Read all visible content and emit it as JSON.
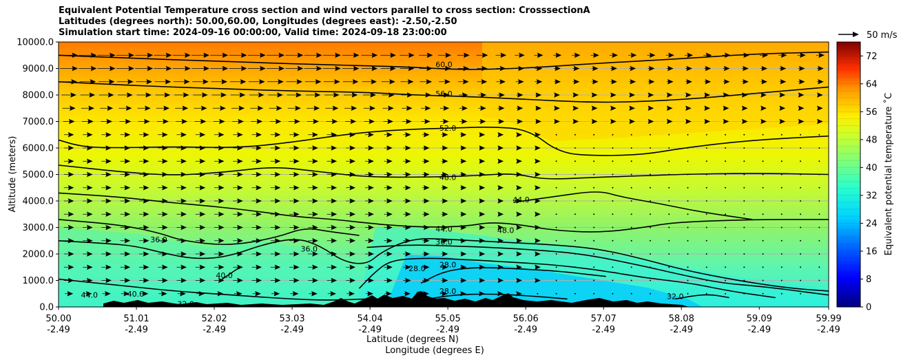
{
  "title": {
    "line1": "Equivalent Potential Temperature cross section and wind vectors parallel to cross section: CrosssectionA",
    "line2": "Latitudes (degrees north): 50.00,60.00, Longitudes (degrees east): -2.50,-2.50",
    "line3": "Simulation start time: 2024-09-16 00:00:00, Valid time: 2024-09-18 23:00:00"
  },
  "chart_data": {
    "type": "heatmap",
    "subtype": "cross-section filled contour with wind vectors",
    "xlabel_line1": "Latitude (degrees N)",
    "xlabel_line2": "Longitude (degrees E)",
    "ylabel": "Altitude (meters)",
    "ylim": [
      0,
      10000
    ],
    "xlim": [
      50.0,
      59.99
    ],
    "y_ticks": [
      0,
      1000,
      2000,
      3000,
      4000,
      5000,
      6000,
      7000,
      8000,
      9000,
      10000
    ],
    "y_tick_labels": [
      "0.0",
      "1000.0",
      "2000.0",
      "3000.0",
      "4000.0",
      "5000.0",
      "6000.0",
      "7000.0",
      "8000.0",
      "9000.0",
      "10000.0"
    ],
    "x_ticks": [
      50.0,
      51.01,
      52.02,
      53.03,
      54.04,
      55.05,
      56.06,
      57.07,
      58.08,
      59.09,
      59.99
    ],
    "x_tick_labels": [
      "50.00",
      "51.01",
      "52.02",
      "53.03",
      "54.04",
      "55.05",
      "56.06",
      "57.07",
      "58.08",
      "59.09",
      "59.99"
    ],
    "x_tick_lon_labels": [
      "-2.49",
      "-2.49",
      "-2.49",
      "-2.49",
      "-2.49",
      "-2.49",
      "-2.49",
      "-2.49",
      "-2.49",
      "-2.49",
      "-2.49"
    ],
    "grid": "horizontal",
    "colorbar": {
      "label": "Equivalent potential temperature ˚C",
      "min": 0,
      "max": 76,
      "ticks": [
        0,
        8,
        16,
        24,
        32,
        40,
        48,
        56,
        64,
        72
      ],
      "tick_labels": [
        "0",
        "8",
        "16",
        "24",
        "32",
        "40",
        "48",
        "56",
        "64",
        "72"
      ],
      "colormap": "jet"
    },
    "quiver_key_label": "50 m/s",
    "contours": [
      {
        "level": "60.0",
        "points": [
          [
            50.0,
            9500
          ],
          [
            51.0,
            9380
          ],
          [
            52.0,
            9280
          ],
          [
            53.0,
            9180
          ],
          [
            54.0,
            9100
          ],
          [
            54.6,
            9050
          ],
          [
            55.2,
            8950
          ],
          [
            56.0,
            9000
          ],
          [
            57.0,
            9200
          ],
          [
            58.0,
            9350
          ],
          [
            59.0,
            9550
          ],
          [
            59.99,
            9620
          ]
        ]
      },
      {
        "level": "56.0",
        "points": [
          [
            50.0,
            8500
          ],
          [
            51.0,
            8350
          ],
          [
            52.0,
            8250
          ],
          [
            53.0,
            8150
          ],
          [
            54.0,
            8100
          ],
          [
            54.6,
            8000
          ],
          [
            55.2,
            7950
          ],
          [
            56.0,
            7850
          ],
          [
            57.0,
            7700
          ],
          [
            58.0,
            7800
          ],
          [
            59.0,
            8050
          ],
          [
            59.99,
            8300
          ]
        ]
      },
      {
        "level": "52.0",
        "points": [
          [
            50.0,
            6300
          ],
          [
            50.3,
            6050
          ],
          [
            50.7,
            6000
          ],
          [
            51.5,
            6050
          ],
          [
            52.3,
            6000
          ],
          [
            53.0,
            6200
          ],
          [
            53.8,
            6550
          ],
          [
            54.5,
            6700
          ],
          [
            55.1,
            6750
          ],
          [
            55.6,
            6800
          ],
          [
            56.1,
            6700
          ],
          [
            56.5,
            5800
          ],
          [
            57.0,
            5700
          ],
          [
            57.6,
            5750
          ],
          [
            58.1,
            6000
          ],
          [
            59.0,
            6300
          ],
          [
            59.99,
            6450
          ]
        ]
      },
      {
        "level": "48.0",
        "points": [
          [
            50.0,
            5350
          ],
          [
            50.8,
            5100
          ],
          [
            51.5,
            4950
          ],
          [
            52.2,
            5100
          ],
          [
            52.8,
            5300
          ],
          [
            53.4,
            5100
          ],
          [
            54.0,
            4900
          ],
          [
            54.8,
            4900
          ],
          [
            55.4,
            4950
          ],
          [
            55.9,
            5050
          ],
          [
            56.3,
            4800
          ],
          [
            57.0,
            4900
          ],
          [
            57.6,
            4950
          ],
          [
            58.0,
            5000
          ],
          [
            59.0,
            5050
          ],
          [
            59.99,
            5000
          ]
        ]
      },
      {
        "level": "44.0",
        "points": [
          [
            50.0,
            4300
          ],
          [
            50.8,
            4150
          ],
          [
            51.4,
            3950
          ],
          [
            52.0,
            3800
          ],
          [
            52.6,
            3600
          ],
          [
            53.1,
            3400
          ],
          [
            53.6,
            3300
          ],
          [
            54.2,
            3100
          ],
          [
            54.8,
            3000
          ],
          [
            55.3,
            3050
          ],
          [
            55.6,
            3200
          ],
          [
            56.0,
            3100
          ],
          [
            56.4,
            2900
          ],
          [
            57.0,
            2800
          ],
          [
            57.6,
            3000
          ],
          [
            58.0,
            3200
          ],
          [
            59.0,
            3300
          ],
          [
            59.99,
            3300
          ]
        ]
      },
      {
        "level": "44.0",
        "points": [
          [
            55.9,
            3950
          ],
          [
            56.4,
            4150
          ],
          [
            57.0,
            4400
          ],
          [
            57.3,
            4150
          ],
          [
            57.8,
            3900
          ],
          [
            58.3,
            3600
          ],
          [
            59.0,
            3300
          ]
        ]
      },
      {
        "level": "40.0",
        "points": [
          [
            50.0,
            3300
          ],
          [
            50.8,
            3100
          ],
          [
            51.3,
            2800
          ],
          [
            51.6,
            2500
          ],
          [
            52.2,
            2300
          ],
          [
            52.8,
            2600
          ],
          [
            53.2,
            3000
          ],
          [
            53.5,
            2850
          ],
          [
            53.9,
            2700
          ]
        ]
      },
      {
        "level": "36.0",
        "points": [
          [
            50.0,
            2500
          ],
          [
            50.6,
            2400
          ],
          [
            51.0,
            2300
          ],
          [
            51.4,
            2000
          ],
          [
            51.8,
            1800
          ],
          [
            52.2,
            1900
          ],
          [
            52.7,
            2400
          ],
          [
            53.1,
            2600
          ],
          [
            53.4,
            2300
          ],
          [
            53.7,
            1700
          ],
          [
            54.0,
            1600
          ],
          [
            54.2,
            2100
          ],
          [
            54.6,
            2600
          ],
          [
            55.1,
            2550
          ],
          [
            55.7,
            2450
          ],
          [
            56.4,
            2350
          ],
          [
            57.0,
            2200
          ],
          [
            57.6,
            1800
          ],
          [
            58.1,
            1400
          ],
          [
            58.8,
            1000
          ],
          [
            59.5,
            700
          ],
          [
            59.99,
            600
          ]
        ]
      },
      {
        "level": "32.0",
        "points": [
          [
            54.0,
            2250
          ],
          [
            54.6,
            2350
          ],
          [
            55.1,
            2300
          ],
          [
            55.6,
            2250
          ],
          [
            56.2,
            2150
          ],
          [
            56.8,
            2000
          ],
          [
            57.5,
            1600
          ],
          [
            58.1,
            1200
          ],
          [
            58.6,
            900
          ],
          [
            59.2,
            750
          ],
          [
            59.99,
            450
          ]
        ]
      },
      {
        "level": "28.0",
        "points": [
          [
            53.9,
            700
          ],
          [
            54.1,
            1300
          ],
          [
            54.3,
            1750
          ],
          [
            54.7,
            1850
          ],
          [
            55.2,
            1800
          ],
          [
            55.8,
            1700
          ],
          [
            56.4,
            1600
          ],
          [
            57.0,
            1400
          ],
          [
            57.6,
            1100
          ],
          [
            58.2,
            900
          ],
          [
            58.7,
            600
          ],
          [
            59.3,
            350
          ]
        ]
      },
      {
        "level": "28.0",
        "points": [
          [
            54.7,
            900
          ],
          [
            55.0,
            1350
          ],
          [
            55.4,
            1500
          ],
          [
            55.9,
            1450
          ],
          [
            56.5,
            1350
          ],
          [
            57.1,
            1150
          ]
        ]
      },
      {
        "level": "28.0",
        "points": [
          [
            54.8,
            300
          ],
          [
            55.1,
            450
          ],
          [
            55.6,
            500
          ],
          [
            56.1,
            420
          ],
          [
            56.6,
            300
          ]
        ]
      },
      {
        "level": "32.0",
        "points": [
          [
            50.0,
            1050
          ],
          [
            50.5,
            900
          ],
          [
            51.0,
            750
          ],
          [
            51.5,
            600
          ],
          [
            52.0,
            500
          ],
          [
            52.5,
            400
          ],
          [
            53.0,
            300
          ],
          [
            53.5,
            250
          ],
          [
            54.0,
            300
          ]
        ]
      },
      {
        "level": "40.0",
        "points": [
          [
            52.1,
            1000
          ],
          [
            52.25,
            1300
          ],
          [
            52.35,
            1500
          ]
        ]
      },
      {
        "level": "32.0",
        "points": [
          [
            58.0,
            300
          ],
          [
            58.4,
            500
          ],
          [
            58.7,
            350
          ]
        ]
      }
    ],
    "contour_labels": [
      {
        "text": "60.0",
        "x": 55.0,
        "y": 9150
      },
      {
        "text": "56.0",
        "x": 55.0,
        "y": 8050
      },
      {
        "text": "52.0",
        "x": 55.05,
        "y": 6750
      },
      {
        "text": "48.0",
        "x": 55.05,
        "y": 4900
      },
      {
        "text": "44.0",
        "x": 56.0,
        "y": 4050
      },
      {
        "text": "44.0",
        "x": 55.0,
        "y": 2950
      },
      {
        "text": "48.0",
        "x": 55.8,
        "y": 2900
      },
      {
        "text": "36.0",
        "x": 55.0,
        "y": 2450
      },
      {
        "text": "28.0",
        "x": 55.05,
        "y": 1600
      },
      {
        "text": "28.0",
        "x": 55.05,
        "y": 600
      },
      {
        "text": "36.0",
        "x": 51.3,
        "y": 2550
      },
      {
        "text": "36.0",
        "x": 53.25,
        "y": 2200
      },
      {
        "text": "40.0",
        "x": 52.15,
        "y": 1200
      },
      {
        "text": "44.0",
        "x": 50.4,
        "y": 450
      },
      {
        "text": "40.0",
        "x": 51.0,
        "y": 500
      },
      {
        "text": "32.0",
        "x": 51.65,
        "y": 120
      },
      {
        "text": "32.0",
        "x": 58.0,
        "y": 400
      },
      {
        "text": "28.0",
        "x": 54.65,
        "y": 1450
      }
    ],
    "wind_u_by_level": {
      "levels": [
        9500,
        9000,
        8500,
        8000,
        7500,
        7000,
        6500,
        6000,
        5500,
        5000,
        4500,
        4000,
        3500,
        3000,
        2500,
        2000,
        1500,
        1000,
        500
      ],
      "u_west_half": [
        10,
        10,
        9,
        8,
        7,
        6,
        5,
        5,
        5,
        5,
        5,
        5,
        5,
        5,
        5,
        5,
        5,
        5,
        4
      ],
      "u_east_half": [
        4,
        3,
        3,
        2,
        2,
        2,
        1,
        1,
        1,
        1,
        1,
        1,
        1,
        1,
        1,
        1,
        1,
        1,
        1
      ]
    }
  }
}
